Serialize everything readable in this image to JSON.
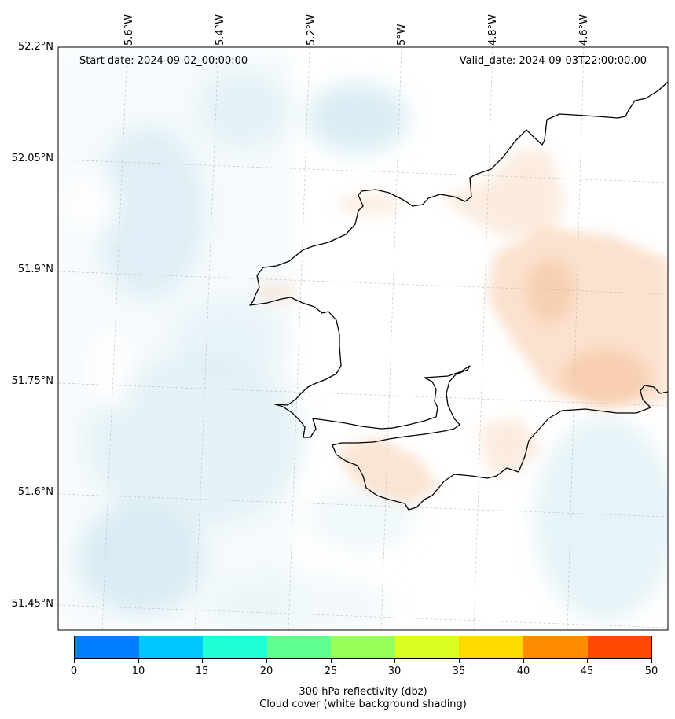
{
  "map": {
    "start_date": "Start date: 2024-09-02_00:00:00",
    "valid_date": "Valid_date: 2024-09-03T22:00:00.00",
    "longitude_labels": [
      "5.6°W",
      "5.4°W",
      "5.2°W",
      "5°W",
      "4.8°W",
      "4.6°W"
    ],
    "latitude_labels": [
      "52.2°N",
      "52.05°N",
      "51.9°N",
      "51.75°N",
      "51.6°N",
      "51.45°N"
    ],
    "gridlines": true,
    "coastline_color": "#000000",
    "cloud_shading_color": "#d6ebf2",
    "reflectivity_shading_color": "#f7c9a6"
  },
  "colorbar": {
    "ticks": [
      "0",
      "10",
      "15",
      "20",
      "25",
      "30",
      "35",
      "40",
      "45",
      "50"
    ],
    "colors": [
      "#0080ff",
      "#00c8ff",
      "#20ffd6",
      "#60ff90",
      "#98ff58",
      "#d8ff20",
      "#ffda00",
      "#ff8c00",
      "#ff4800"
    ],
    "title_line1": "300 hPa reflectivity (dbz)",
    "title_line2": "Cloud cover (white background shading)"
  }
}
